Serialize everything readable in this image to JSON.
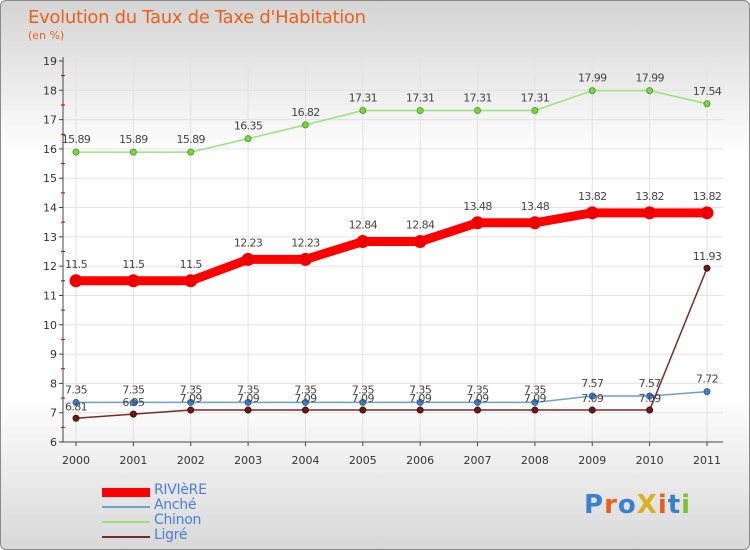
{
  "title": "Evolution du Taux de Taxe d'Habitation",
  "subtitle": "(en %)",
  "logo": "ProXiti",
  "chart_data": {
    "type": "line",
    "x": [
      "2000",
      "2001",
      "2002",
      "2003",
      "2004",
      "2005",
      "2006",
      "2007",
      "2008",
      "2009",
      "2010",
      "2011"
    ],
    "ylim": [
      6,
      19
    ],
    "yticks": [
      "6",
      "7",
      "8",
      "9",
      "10",
      "11",
      "12",
      "13",
      "14",
      "15",
      "16",
      "17",
      "18",
      "19"
    ],
    "grid": true,
    "legend_position": "bottom-left",
    "series": [
      {
        "name": "RIVIèRE",
        "color": "#ff0000",
        "values": [
          11.5,
          11.5,
          11.5,
          12.23,
          12.23,
          12.84,
          12.84,
          13.48,
          13.48,
          13.82,
          13.82,
          13.82
        ],
        "labels": [
          "11.5",
          "11.5",
          "11.5",
          "12.23",
          "12.23",
          "12.84",
          "12.84",
          "13.48",
          "13.48",
          "13.82",
          "13.82",
          "13.82"
        ]
      },
      {
        "name": "Anché",
        "color": "#6e9fcf",
        "values": [
          7.35,
          7.35,
          7.35,
          7.35,
          7.35,
          7.35,
          7.35,
          7.35,
          7.35,
          7.57,
          7.57,
          7.72
        ],
        "labels": [
          "7.35",
          "7.35",
          "7.35",
          "7.35",
          "7.35",
          "7.35",
          "7.35",
          "7.35",
          "7.35",
          "7.57",
          "7.57",
          "7.72"
        ]
      },
      {
        "name": "Chinon",
        "color": "#99e27a",
        "values": [
          15.89,
          15.89,
          15.89,
          16.35,
          16.82,
          17.31,
          17.31,
          17.31,
          17.31,
          17.99,
          17.99,
          17.54
        ],
        "labels": [
          "15.89",
          "15.89",
          "15.89",
          "16.35",
          "16.82",
          "17.31",
          "17.31",
          "17.31",
          "17.31",
          "17.99",
          "17.99",
          "17.54"
        ]
      },
      {
        "name": "Ligré",
        "color": "#7a2a2a",
        "values": [
          6.81,
          6.95,
          7.09,
          7.09,
          7.09,
          7.09,
          7.09,
          7.09,
          7.09,
          7.09,
          7.09,
          11.93
        ],
        "labels": [
          "6.81",
          "6.95",
          "7.09",
          "7.09",
          "7.09",
          "7.09",
          "7.09",
          "7.09",
          "7.09",
          "7.09",
          "7.09",
          "11.93"
        ]
      }
    ]
  }
}
